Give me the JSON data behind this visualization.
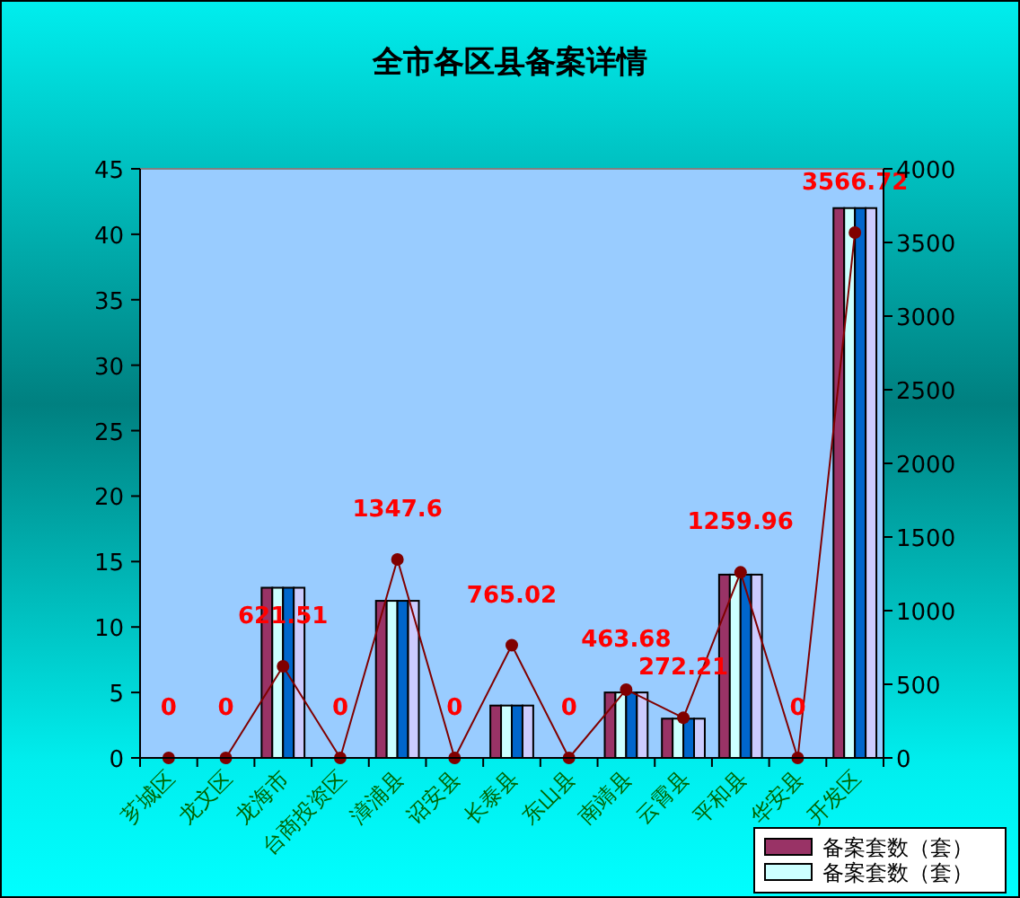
{
  "chart_data": {
    "type": "bar",
    "title": "全市各区县备案详情",
    "categories": [
      "芗城区",
      "龙文区",
      "龙海市",
      "台商投资区",
      "漳浦县",
      "诏安县",
      "长泰县",
      "东山县",
      "南靖县",
      "云霄县",
      "平和县",
      "华安县",
      "开发区"
    ],
    "series": [
      {
        "name": "备案套数（套）",
        "color": "#993366",
        "values": [
          0,
          0,
          13,
          0,
          12,
          0,
          4,
          0,
          5,
          3,
          14,
          0,
          42
        ]
      },
      {
        "name": "备案套数（套）",
        "color": "#ccffff",
        "values": [
          0,
          0,
          13,
          0,
          12,
          0,
          4,
          0,
          5,
          3,
          14,
          0,
          42
        ]
      },
      {
        "color": "#0066cc",
        "values": [
          0,
          0,
          13,
          0,
          12,
          0,
          4,
          0,
          5,
          3,
          14,
          0,
          42
        ]
      },
      {
        "color": "#ccccff",
        "values": [
          0,
          0,
          13,
          0,
          12,
          0,
          4,
          0,
          5,
          3,
          14,
          0,
          42
        ]
      },
      {
        "type": "line",
        "axis": "y2",
        "color": "#800000",
        "values": [
          0,
          0,
          621.51,
          0,
          1347.6,
          0,
          765.02,
          0,
          463.68,
          272.21,
          1259.96,
          0,
          3566.72
        ],
        "value_labels": [
          "0",
          "0",
          "621.51",
          "0",
          "1347.6",
          "0",
          "765.02",
          "0",
          "463.68",
          "272.21",
          "1259.96",
          "0",
          "3566.72"
        ]
      }
    ],
    "ylim": [
      0,
      45
    ],
    "yticks": [
      0,
      5,
      10,
      15,
      20,
      25,
      30,
      35,
      40,
      45
    ],
    "y2lim": [
      0,
      4000
    ],
    "y2ticks": [
      0,
      500,
      1000,
      1500,
      2000,
      2500,
      3000,
      3500,
      4000
    ],
    "marker": "circle",
    "legend": "bottom right"
  }
}
